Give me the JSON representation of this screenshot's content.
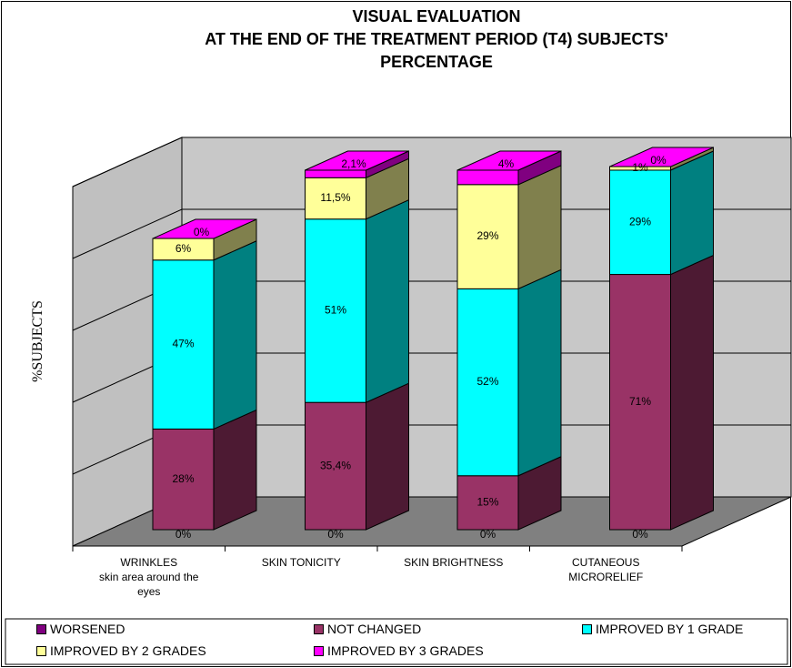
{
  "chart_data": {
    "type": "bar3d_stacked",
    "title": "VISUAL EVALUATION\nAT THE END OF THE TREATMENT PERIOD (T4) SUBJECTS'\nPERCENTAGE",
    "y_label": "%SUBJECTS",
    "categories": [
      "WRINKLES\nskin area around the eyes",
      "SKIN TONICITY",
      "SKIN BRIGHTNESS",
      "CUTANEOUS MICRORELIEF"
    ],
    "series": [
      {
        "name": "WORSENED",
        "color": "#800080",
        "side_color": "#400040",
        "values": [
          0,
          0,
          0,
          0
        ],
        "value_labels": [
          "0%",
          "0%",
          "0%",
          "0%"
        ]
      },
      {
        "name": "NOT CHANGED",
        "color": "#993366",
        "side_color": "#4d1a33",
        "values": [
          28,
          35.4,
          15,
          71
        ],
        "value_labels": [
          "28%",
          "35,4%",
          "15%",
          "71%"
        ]
      },
      {
        "name": "IMPROVED BY 1 GRADE",
        "color": "#00ffff",
        "side_color": "#008080",
        "values": [
          47,
          51,
          52,
          29
        ],
        "value_labels": [
          "47%",
          "51%",
          "52%",
          "29%"
        ]
      },
      {
        "name": "IMPROVED BY 2 GRADES",
        "color": "#ffff99",
        "side_color": "#80804d",
        "values": [
          6,
          11.5,
          29,
          1
        ],
        "value_labels": [
          "6%",
          "11,5%",
          "29%",
          "1%"
        ]
      },
      {
        "name": "IMPROVED BY 3 GRADES",
        "color": "#ff00ff",
        "side_color": "#800080",
        "values": [
          0,
          2.1,
          4,
          0
        ],
        "value_labels": [
          "0%",
          "2,1%",
          "4%",
          "0%"
        ]
      }
    ],
    "ylim": [
      0,
      100
    ],
    "yticks": [
      0,
      20,
      40,
      60,
      80,
      100
    ],
    "grid": true,
    "legend": "bottom"
  }
}
